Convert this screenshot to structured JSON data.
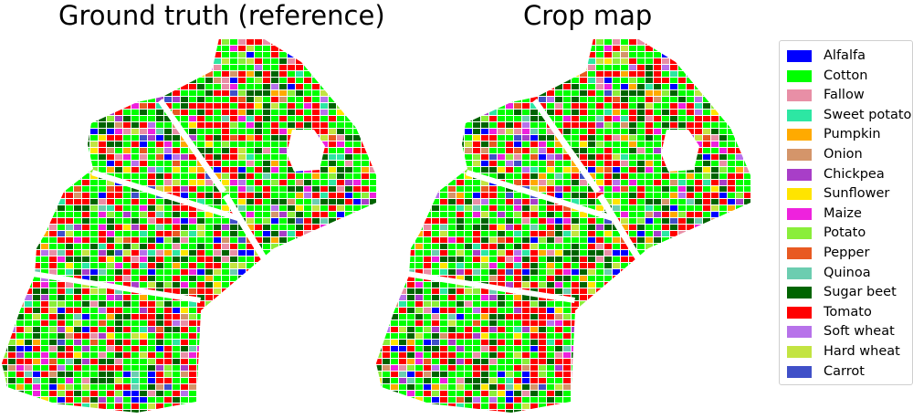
{
  "panels": [
    {
      "title": "Ground truth (reference)"
    },
    {
      "title": "Crop map"
    }
  ],
  "legend": [
    {
      "label": "Alfalfa",
      "color": "#0000ff"
    },
    {
      "label": "Cotton",
      "color": "#00ff00"
    },
    {
      "label": "Fallow",
      "color": "#e88fa6"
    },
    {
      "label": "Sweet potato",
      "color": "#2de7a3"
    },
    {
      "label": "Pumpkin",
      "color": "#ffaa00"
    },
    {
      "label": "Onion",
      "color": "#d4956a"
    },
    {
      "label": "Chickpea",
      "color": "#a83ec8"
    },
    {
      "label": "Sunflower",
      "color": "#ffe400"
    },
    {
      "label": "Maize",
      "color": "#ee22dd"
    },
    {
      "label": "Potato",
      "color": "#8aee3a"
    },
    {
      "label": "Pepper",
      "color": "#e85a22"
    },
    {
      "label": "Quinoa",
      "color": "#6ccdb0"
    },
    {
      "label": "Sugar beet",
      "color": "#006400"
    },
    {
      "label": "Tomato",
      "color": "#ff0000"
    },
    {
      "label": "Soft wheat",
      "color": "#b772ea"
    },
    {
      "label": "Hard wheat",
      "color": "#c3e442"
    },
    {
      "label": "Carrot",
      "color": "#4050c8"
    }
  ]
}
